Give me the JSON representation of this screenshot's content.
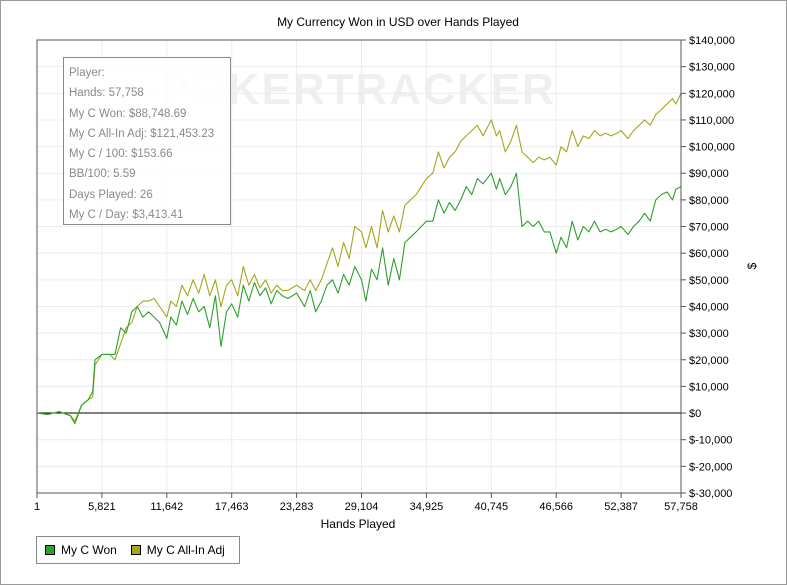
{
  "chart_data": {
    "type": "line",
    "title": "My Currency Won in USD over Hands Played",
    "xlabel": "Hands Played",
    "ylabel": "$",
    "xlim": [
      1,
      57758
    ],
    "ylim": [
      -30000,
      140000
    ],
    "x_ticks": [
      1,
      5821,
      11642,
      17463,
      23283,
      29104,
      34925,
      40745,
      46566,
      52387,
      57758
    ],
    "x_tick_labels": [
      "1",
      "5,821",
      "11,642",
      "17,463",
      "23,283",
      "29,104",
      "34,925",
      "40,745",
      "46,566",
      "52,387",
      "57,758"
    ],
    "y_ticks": [
      -30000,
      -20000,
      -10000,
      0,
      10000,
      20000,
      30000,
      40000,
      50000,
      60000,
      70000,
      80000,
      90000,
      100000,
      110000,
      120000,
      130000,
      140000
    ],
    "y_tick_labels": [
      "$-30,000",
      "$-20,000",
      "$-10,000",
      "$0",
      "$10,000",
      "$20,000",
      "$30,000",
      "$40,000",
      "$50,000",
      "$60,000",
      "$70,000",
      "$80,000",
      "$90,000",
      "$100,000",
      "$110,000",
      "$120,000",
      "$130,000",
      "$140,000"
    ],
    "grid": true,
    "legend_position": "bottom-left",
    "series": [
      {
        "name": "My C Won",
        "color": "#2ca02c",
        "x": [
          1,
          1000,
          2000,
          3000,
          3400,
          4000,
          4600,
          5000,
          5200,
          5821,
          6500,
          7000,
          7500,
          8000,
          8500,
          9000,
          9500,
          10000,
          10500,
          11000,
          11642,
          12000,
          12500,
          13000,
          13500,
          14000,
          14500,
          15000,
          15500,
          16000,
          16500,
          17000,
          17463,
          18000,
          18500,
          19000,
          19500,
          20000,
          20500,
          21000,
          21500,
          22000,
          22500,
          23283,
          24000,
          24500,
          25000,
          25500,
          26000,
          26500,
          27000,
          27500,
          28000,
          28500,
          29104,
          29500,
          30000,
          30500,
          31000,
          31500,
          32000,
          32500,
          33000,
          33500,
          34000,
          34925,
          35500,
          36000,
          36500,
          37000,
          37500,
          38000,
          38500,
          39000,
          39500,
          40000,
          40745,
          41200,
          41500,
          42000,
          42500,
          43000,
          43500,
          44000,
          44500,
          45000,
          45500,
          46000,
          46566,
          47000,
          47500,
          48000,
          48500,
          49000,
          49500,
          50000,
          50500,
          51000,
          51500,
          52000,
          52387,
          53000,
          53500,
          54000,
          54500,
          55000,
          55500,
          56000,
          56500,
          57000,
          57300,
          57758
        ],
        "values": [
          0,
          -500,
          500,
          -1000,
          -4000,
          3000,
          5000,
          8000,
          20000,
          22000,
          22000,
          22000,
          32000,
          30000,
          38000,
          40000,
          36000,
          38000,
          36000,
          34000,
          28000,
          36000,
          33000,
          42000,
          37000,
          43000,
          38000,
          40000,
          32000,
          44000,
          25000,
          38000,
          41000,
          36000,
          48000,
          42000,
          49000,
          44000,
          47000,
          41000,
          46000,
          44000,
          43000,
          45000,
          40000,
          46000,
          38000,
          42000,
          48000,
          50000,
          45000,
          52000,
          48000,
          55000,
          50000,
          42000,
          54000,
          50000,
          62000,
          48000,
          58000,
          50000,
          64000,
          66000,
          68000,
          72000,
          72000,
          80000,
          75000,
          79000,
          76000,
          80000,
          85000,
          82000,
          88000,
          86000,
          90000,
          84000,
          88000,
          82000,
          85000,
          90000,
          70000,
          72000,
          70000,
          72000,
          68000,
          68000,
          60000,
          66000,
          62000,
          72000,
          65000,
          70000,
          68000,
          72000,
          68000,
          69000,
          68000,
          69000,
          70000,
          67000,
          70000,
          72000,
          75000,
          72000,
          80000,
          82000,
          83000,
          80000,
          84000,
          85000
        ]
      },
      {
        "name": "My C All-In Adj",
        "color": "#a5a51c",
        "x": [
          1,
          1000,
          2000,
          3000,
          3400,
          4000,
          4600,
          5000,
          5200,
          5821,
          6500,
          7000,
          7500,
          8000,
          8500,
          9000,
          9500,
          10000,
          10500,
          11000,
          11642,
          12000,
          12500,
          13000,
          13500,
          14000,
          14500,
          15000,
          15500,
          16000,
          16500,
          17000,
          17463,
          18000,
          18500,
          19000,
          19500,
          20000,
          20500,
          21000,
          21500,
          22000,
          22500,
          23283,
          24000,
          24500,
          25000,
          25500,
          26000,
          26500,
          27000,
          27500,
          28000,
          28500,
          29104,
          29500,
          30000,
          30500,
          31000,
          31500,
          32000,
          32500,
          33000,
          33500,
          34000,
          34925,
          35500,
          36000,
          36500,
          37000,
          37500,
          38000,
          38500,
          39000,
          39500,
          40000,
          40745,
          41200,
          41500,
          42000,
          42500,
          43000,
          43500,
          44000,
          44500,
          45000,
          45500,
          46000,
          46566,
          47000,
          47500,
          48000,
          48500,
          49000,
          49500,
          50000,
          50500,
          51000,
          51500,
          52000,
          52387,
          53000,
          53500,
          54000,
          54500,
          55000,
          55500,
          56000,
          56500,
          57000,
          57300,
          57758
        ],
        "values": [
          0,
          -500,
          500,
          -1000,
          -3000,
          3000,
          5000,
          6000,
          18000,
          22000,
          22000,
          20000,
          26000,
          32000,
          34000,
          40000,
          42000,
          42000,
          43000,
          40000,
          36000,
          42000,
          40000,
          48000,
          44000,
          50000,
          45000,
          52000,
          44000,
          50000,
          40000,
          48000,
          50000,
          44000,
          55000,
          48000,
          52000,
          47000,
          50000,
          45000,
          48000,
          46000,
          46000,
          48000,
          46000,
          50000,
          46000,
          50000,
          56000,
          62000,
          55000,
          64000,
          58000,
          70000,
          68000,
          62000,
          70000,
          62000,
          76000,
          68000,
          74000,
          68000,
          78000,
          80000,
          82000,
          88000,
          90000,
          98000,
          92000,
          96000,
          98000,
          102000,
          104000,
          106000,
          108000,
          104000,
          110000,
          104000,
          106000,
          98000,
          102000,
          108000,
          98000,
          96000,
          94000,
          96000,
          95000,
          96000,
          93000,
          100000,
          98000,
          106000,
          100000,
          104000,
          103000,
          106000,
          104000,
          105000,
          104000,
          105000,
          106000,
          103000,
          106000,
          108000,
          110000,
          108000,
          112000,
          114000,
          116000,
          118000,
          116000,
          120000
        ]
      }
    ]
  },
  "stats_box": {
    "lines": [
      "Player:",
      "Hands: 57,758",
      "My C Won: $88,748.69",
      "My C All-In Adj: $121,453.23",
      "My C / 100: $153.66",
      "BB/100: 5.59",
      "Days Played: 26",
      "My C / Day: $3,413.41"
    ]
  },
  "watermark": "POKERTRACKER"
}
